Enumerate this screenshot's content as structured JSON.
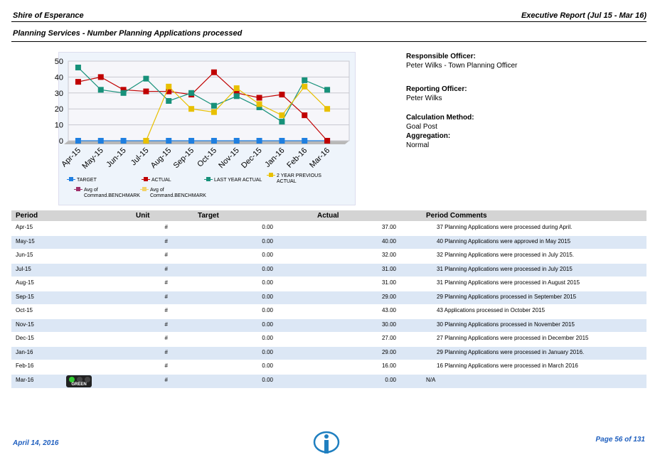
{
  "header": {
    "org": "Shire of Esperance",
    "report": "Executive Report (Jul 15 - Mar 16)",
    "subtitle": "Planning Services - Number Planning Applications processed"
  },
  "chart_data": {
    "type": "line",
    "categories": [
      "Apr-15",
      "May-15",
      "Jun-15",
      "Jul-15",
      "Aug-15",
      "Sep-15",
      "Oct-15",
      "Nov-15",
      "Dec-15",
      "Jan-16",
      "Feb-16",
      "Mar-16"
    ],
    "ylim": [
      0,
      50
    ],
    "yticks": [
      0,
      10,
      20,
      30,
      40,
      50
    ],
    "grid": true,
    "series": [
      {
        "name": "TARGET",
        "color": "#1f7fe0",
        "values": [
          0,
          0,
          0,
          0,
          0,
          0,
          0,
          0,
          0,
          0,
          0,
          0
        ]
      },
      {
        "name": "ACTUAL",
        "color": "#c00000",
        "values": [
          37,
          40,
          32,
          31,
          31,
          29,
          43,
          30,
          27,
          29,
          16,
          0
        ]
      },
      {
        "name": "LAST YEAR ACTUAL",
        "color": "#17917a",
        "values": [
          46,
          32,
          30,
          39,
          25,
          30,
          22,
          28,
          21,
          12,
          38,
          32
        ]
      },
      {
        "name": "2 YEAR PREVIOUS ACTUAL",
        "color": "#e8c000",
        "values": [
          null,
          null,
          null,
          0,
          34,
          20,
          18,
          33,
          23,
          16,
          34,
          20
        ]
      },
      {
        "name": "Avg of Command.BENCHMARK",
        "color": "#a0306a",
        "values": [
          null,
          null,
          null,
          null,
          null,
          null,
          null,
          null,
          null,
          null,
          null,
          null
        ]
      },
      {
        "name": "Avg of Command.BENCHMARK",
        "color": "#f2d36a",
        "values": [
          null,
          null,
          null,
          null,
          null,
          null,
          null,
          null,
          null,
          null,
          null,
          null
        ]
      }
    ]
  },
  "info": [
    {
      "label": "Responsible Officer:",
      "value": "Peter Wilks - Town Planning Officer"
    },
    {
      "label": "Reporting Officer:",
      "value": "Peter Wilks"
    },
    {
      "label": "Calculation Method:",
      "value": "Goal Post"
    },
    {
      "label": "Aggregation:",
      "value": "Normal"
    }
  ],
  "table": {
    "columns": [
      "Period",
      "Unit",
      "Target",
      "Actual",
      "Period Comments"
    ],
    "rows": [
      {
        "period": "Apr-15",
        "unit": "#",
        "target": "0.00",
        "actual": "37.00",
        "comment": "37 Planning Applications were processed during April."
      },
      {
        "period": "May-15",
        "unit": "#",
        "target": "0.00",
        "actual": "40.00",
        "comment": "40 Planning Applications were approved in May 2015"
      },
      {
        "period": "Jun-15",
        "unit": "#",
        "target": "0.00",
        "actual": "32.00",
        "comment": "32 Planning Applications were processed in July 2015."
      },
      {
        "period": "Jul-15",
        "unit": "#",
        "target": "0.00",
        "actual": "31.00",
        "comment": "31 Planning Applications were processed in July 2015"
      },
      {
        "period": "Aug-15",
        "unit": "#",
        "target": "0.00",
        "actual": "31.00",
        "comment": "31 Planning Applications were processed in August 2015"
      },
      {
        "period": "Sep-15",
        "unit": "#",
        "target": "0.00",
        "actual": "29.00",
        "comment": "29 Planning Applications processed in September 2015"
      },
      {
        "period": "Oct-15",
        "unit": "#",
        "target": "0.00",
        "actual": "43.00",
        "comment": "43 Applications processed in October 2015"
      },
      {
        "period": "Nov-15",
        "unit": "#",
        "target": "0.00",
        "actual": "30.00",
        "comment": "30 Planning Applications processed in November 2015"
      },
      {
        "period": "Dec-15",
        "unit": "#",
        "target": "0.00",
        "actual": "27.00",
        "comment": "27 Planning Applications were processed in December 2015"
      },
      {
        "period": "Jan-16",
        "unit": "#",
        "target": "0.00",
        "actual": "29.00",
        "comment": "29 Planning Applications were processed in January 2016."
      },
      {
        "period": "Feb-16",
        "unit": "#",
        "target": "0.00",
        "actual": "16.00",
        "comment": "16 Planning Applications were processed in March 2016"
      },
      {
        "period": "Mar-16",
        "status": "GREEN",
        "unit": "#",
        "target": "0.00",
        "actual": "0.00",
        "comment": "N/A"
      }
    ]
  },
  "footer": {
    "date": "April 14, 2016",
    "page": "Page 56 of 131"
  }
}
